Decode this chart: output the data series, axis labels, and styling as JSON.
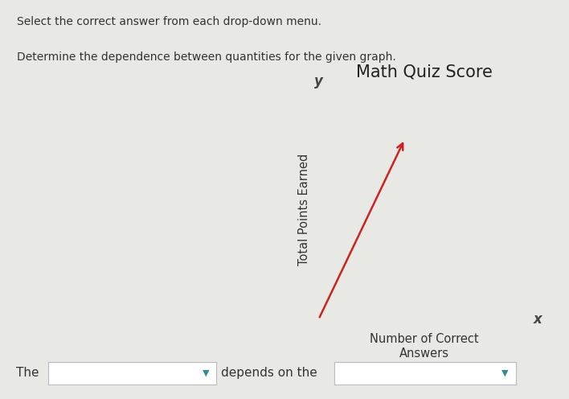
{
  "title": "Math Quiz Score",
  "xlabel": "Number of Correct\nAnswers",
  "ylabel": "Total Points Earned",
  "x_axis_label_short": "x",
  "y_axis_label_short": "y",
  "line_color": "#cc2222",
  "axis_color": "#444444",
  "background_color": "#e8e8e4",
  "title_fontsize": 15,
  "label_fontsize": 10.5,
  "text_top": "Select the correct answer from each drop-down menu.",
  "text_second": "Determine the dependence between quantities for the given graph.",
  "the_text": "The",
  "depends_text": "depends on the"
}
